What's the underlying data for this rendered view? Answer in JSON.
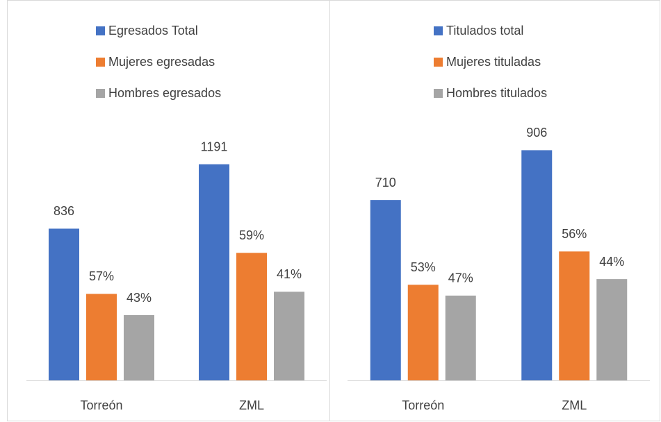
{
  "chart_data": [
    {
      "type": "bar",
      "categories": [
        "Torreón",
        "ZML"
      ],
      "ylim": [
        0,
        1400
      ],
      "series": [
        {
          "name": "Egresados Total",
          "color": "#4472c4",
          "values": [
            836,
            1191
          ]
        },
        {
          "name": "Mujeres egresadas",
          "color": "#ed7d31",
          "values": [
            57,
            59
          ],
          "value_labels": [
            "57%",
            "59%"
          ]
        },
        {
          "name": "Hombres egresados",
          "color": "#a5a5a5",
          "values": [
            43,
            41
          ],
          "value_labels": [
            "43%",
            "41%"
          ]
        }
      ]
    },
    {
      "type": "bar",
      "categories": [
        "Torreón",
        "ZML"
      ],
      "ylim": [
        0,
        1000
      ],
      "series": [
        {
          "name": "Titulados total",
          "color": "#4472c4",
          "values": [
            710,
            906
          ]
        },
        {
          "name": "Mujeres tituladas",
          "color": "#ed7d31",
          "values": [
            53,
            56
          ],
          "value_labels": [
            "53%",
            "56%"
          ]
        },
        {
          "name": "Hombres titulados",
          "color": "#a5a5a5",
          "values": [
            47,
            44
          ],
          "value_labels": [
            "47%",
            "44%"
          ]
        }
      ]
    }
  ]
}
